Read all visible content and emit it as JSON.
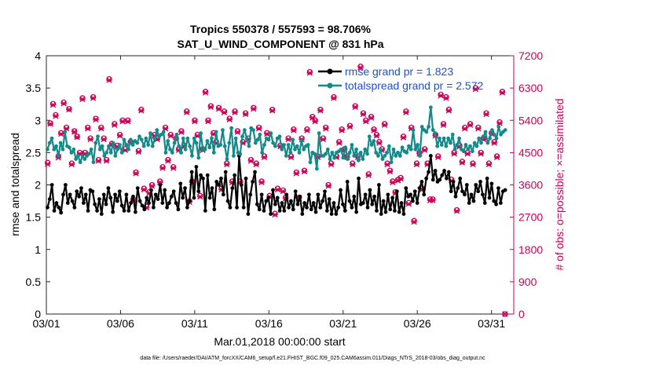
{
  "chart_data": {
    "type": "line",
    "title_line1": "Tropics 550378 / 557593 = 98.706%",
    "title_line2": "SAT_U_WIND_COMPONENT @ 831 hPa",
    "xlabel": "Mar.01,2018 00:00:00 start",
    "ylabel_left": "rmse and totalspread",
    "ylabel_right": "# of obs: o=possible; ×=assimilated",
    "footnote": "data file: /Users/raeder/DAI/ATM_forcXX/CAM6_setup/f.e21.FHIST_BGC.f09_025.CAM6assim.011/Diags_NTrS_2018-03/obs_diag_output.nc",
    "xlim": [
      0,
      31.5
    ],
    "ylim_left": [
      0,
      4
    ],
    "ylim_right": [
      0,
      7200
    ],
    "x_ticks": [
      {
        "value": 0,
        "label": "03/01"
      },
      {
        "value": 5,
        "label": "03/06"
      },
      {
        "value": 10,
        "label": "03/11"
      },
      {
        "value": 15,
        "label": "03/16"
      },
      {
        "value": 20,
        "label": "03/21"
      },
      {
        "value": 25,
        "label": "03/26"
      },
      {
        "value": 30,
        "label": "03/31"
      }
    ],
    "y_ticks_left": [
      "0",
      "0.5",
      "1",
      "1.5",
      "2",
      "2.5",
      "3",
      "3.5",
      "4"
    ],
    "y_ticks_right": [
      "0",
      "900",
      "1800",
      "2700",
      "3600",
      "4500",
      "5400",
      "6300",
      "7200"
    ],
    "legend": [
      {
        "label": "rmse grand pr = 1.823",
        "color": "#000000"
      },
      {
        "label": "totalspread grand pr = 2.572",
        "color": "#138a8a"
      }
    ],
    "colors": {
      "rmse": "#000000",
      "spread": "#138a8a",
      "obs": "#cc0055"
    },
    "series": [
      {
        "name": "rmse",
        "axis": "left",
        "values": [
          1.65,
          1.78,
          2.0,
          1.6,
          1.72,
          1.65,
          1.57,
          1.85,
          2.0,
          1.72,
          1.85,
          1.75,
          1.65,
          1.9,
          1.82,
          1.95,
          1.72,
          1.85,
          1.6,
          1.92,
          1.9,
          1.7,
          1.6,
          1.78,
          1.55,
          1.85,
          1.7,
          1.95,
          1.8,
          1.58,
          1.85,
          1.75,
          1.9,
          1.68,
          1.6,
          1.85,
          1.6,
          1.72,
          1.82,
          1.58,
          1.95,
          1.75,
          1.68,
          1.62,
          1.8,
          1.72,
          1.92,
          1.65,
          1.85,
          1.78,
          2.0,
          1.72,
          1.92,
          1.65,
          1.72,
          1.82,
          1.9,
          1.72,
          1.62,
          2.02,
          1.8,
          1.95,
          1.65,
          1.75,
          2.2,
          1.8,
          2.28,
          1.9,
          2.15,
          2.1,
          1.6,
          2.15,
          1.8,
          1.95,
          1.62,
          2.05,
          2.0,
          2.1,
          1.85,
          2.2,
          1.75,
          1.65,
          1.95,
          2.15,
          1.65,
          2.45,
          2.0,
          1.65,
          2.1,
          1.55,
          1.85,
          2.05,
          2.2,
          1.7,
          1.62,
          1.85,
          1.6,
          1.75,
          1.8,
          1.55,
          1.92,
          1.7,
          1.8,
          1.6,
          1.72,
          1.6,
          1.85,
          1.65,
          1.75,
          1.62,
          1.9,
          1.7,
          1.82,
          1.55,
          1.72,
          1.65,
          1.85,
          1.62,
          1.72,
          1.58,
          1.85,
          1.65,
          1.75,
          1.9,
          1.6,
          1.78,
          1.55,
          1.72,
          1.55,
          1.65,
          1.92,
          1.7,
          1.6,
          2.05,
          1.75,
          1.65,
          1.82,
          1.58,
          2.1,
          1.7,
          1.72,
          1.85,
          1.65,
          1.92,
          1.7,
          1.82,
          1.6,
          2.0,
          1.55,
          1.75,
          1.58,
          1.85,
          1.62,
          1.8,
          1.6,
          1.9,
          1.58,
          1.72,
          1.55,
          1.95,
          1.82,
          1.85,
          1.75,
          1.9,
          1.72,
          1.95,
          2.05,
          1.85,
          2.1,
          2.2,
          2.45,
          2.08,
          2.22,
          2.05,
          2.08,
          2.15,
          2.22,
          2.1,
          2.2,
          1.9,
          2.05,
          1.82,
          1.95,
          2.1,
          1.9,
          1.85,
          2.0,
          1.72,
          1.85,
          1.75,
          2.0,
          1.9,
          2.05,
          1.85,
          1.72,
          2.1,
          1.8,
          2.02,
          1.75,
          1.7,
          1.95,
          1.72,
          1.9,
          1.92
        ]
      },
      {
        "name": "totalspread",
        "axis": "left",
        "values": [
          2.55,
          2.65,
          2.72,
          2.55,
          2.6,
          2.45,
          2.65,
          2.55,
          2.82,
          2.6,
          2.58,
          2.5,
          2.55,
          2.4,
          2.45,
          2.35,
          2.45,
          2.4,
          2.45,
          2.48,
          2.55,
          2.35,
          2.65,
          2.75,
          2.55,
          2.6,
          2.45,
          2.5,
          2.6,
          2.5,
          2.65,
          2.45,
          2.55,
          2.62,
          2.5,
          2.7,
          2.62,
          2.55,
          2.7,
          2.62,
          2.68,
          2.65,
          2.75,
          2.7,
          2.6,
          2.72,
          2.62,
          2.8,
          2.6,
          2.72,
          2.85,
          2.75,
          2.78,
          2.82,
          2.5,
          2.68,
          2.55,
          2.5,
          2.65,
          2.78,
          2.6,
          2.5,
          2.72,
          2.55,
          2.72,
          2.6,
          2.45,
          2.72,
          2.65,
          2.42,
          2.8,
          2.55,
          2.55,
          2.68,
          2.58,
          2.72,
          2.5,
          2.82,
          2.6,
          2.62,
          2.85,
          2.6,
          2.4,
          2.65,
          2.88,
          2.45,
          2.72,
          2.5,
          2.48,
          2.75,
          2.85,
          2.72,
          2.6,
          2.88,
          2.85,
          2.65,
          2.7,
          2.78,
          2.5,
          2.62,
          2.72,
          2.7,
          2.8,
          2.65,
          2.6,
          2.72,
          2.75,
          2.55,
          2.62,
          2.45,
          2.62,
          2.5,
          2.7,
          2.55,
          2.6,
          2.5,
          2.68,
          2.55,
          2.6,
          2.62,
          2.35,
          2.5,
          2.48,
          2.25,
          2.8,
          2.45,
          2.45,
          2.48,
          2.55,
          2.4,
          2.5,
          2.42,
          2.5,
          2.52,
          2.55,
          2.42,
          2.58,
          2.4,
          2.5,
          2.62,
          2.45,
          2.55,
          2.38,
          2.5,
          2.4,
          2.55,
          2.48,
          2.75,
          2.62,
          2.68,
          2.5,
          2.45,
          2.55,
          2.4,
          2.45,
          2.5,
          2.6,
          2.35,
          2.55,
          2.45,
          2.5,
          2.45,
          2.58,
          2.52,
          2.5,
          2.6,
          2.55,
          2.85,
          2.55,
          2.62,
          2.45,
          2.9,
          2.85,
          2.82,
          2.9,
          3.2,
          2.85,
          2.8,
          2.6,
          2.72,
          2.62,
          2.72,
          2.6,
          2.72,
          2.65,
          2.78,
          2.55,
          2.62,
          2.72,
          2.55,
          2.52,
          2.62,
          2.55,
          2.6,
          2.52,
          2.65,
          2.6,
          2.72,
          2.65,
          2.75,
          2.82,
          2.65,
          2.72,
          2.85,
          2.78,
          2.72,
          2.9,
          2.78,
          2.82,
          2.85
        ]
      }
    ],
    "obs_counts": {
      "axis": "right",
      "possible": [
        4220,
        5320,
        5860,
        5550,
        4400,
        5050,
        5900,
        5200,
        5720,
        4200,
        5100,
        4950,
        4500,
        6020,
        4500,
        5200,
        4900,
        6050,
        5450,
        4300,
        5200,
        4900,
        4300,
        6550,
        4750,
        5300,
        4700,
        5000,
        5400,
        4600,
        5400,
        4800,
        3200,
        3950,
        4550,
        5700,
        3500,
        3000,
        3400,
        3600,
        5000,
        4900,
        3700,
        4100,
        5200,
        4300,
        5000,
        4100,
        4900,
        4600,
        5100,
        4700,
        5650,
        3150,
        3700,
        5400,
        5000,
        3300,
        4600,
        6200,
        5400,
        5800,
        5050,
        4800,
        5750,
        3500,
        5650,
        4200,
        5450,
        3700,
        5650,
        5100,
        3700,
        4800,
        5600,
        4900,
        4300,
        5750,
        4200,
        5200,
        3700,
        4400,
        5050,
        3300,
        5700,
        2800,
        3500,
        4700,
        3450,
        3250,
        4900,
        4400,
        5150,
        3950,
        3250,
        4900,
        4000,
        5150,
        6750,
        5500,
        5400,
        4400,
        5700,
        4900,
        5200,
        3600,
        4200,
        6050,
        4400,
        4800,
        5150,
        4600,
        4400,
        5250,
        4200,
        5800,
        4400,
        6900,
        5600,
        5400,
        3900,
        5500,
        5150,
        5000,
        4800,
        4600,
        5300,
        4200,
        4000,
        3700,
        3400,
        3750,
        3800,
        4950,
        5650,
        3100,
        5200,
        2600,
        4200,
        4500,
        3500,
        4600,
        4200,
        3200,
        3200,
        5000,
        4400,
        6120,
        5300,
        6050,
        5700,
        3750,
        4500,
        2900,
        4700,
        4250,
        5200,
        4500,
        5300,
        4200,
        6300,
        5200,
        4500,
        4900,
        5600,
        4200,
        5050,
        4800,
        4400,
        5350,
        6200,
        0
      ],
      "assimilated": [
        4180,
        5300,
        5830,
        5520,
        4360,
        5020,
        5870,
        5170,
        5700,
        4170,
        5080,
        4930,
        4470,
        5990,
        4470,
        5170,
        4870,
        6020,
        5420,
        4270,
        5170,
        4870,
        4270,
        6520,
        4720,
        5270,
        4670,
        4970,
        5370,
        4570,
        5370,
        4770,
        3170,
        3920,
        4520,
        5670,
        3470,
        2970,
        3370,
        3570,
        4970,
        4870,
        3670,
        4070,
        5170,
        4270,
        4970,
        4070,
        4870,
        4570,
        5070,
        4670,
        5620,
        3120,
        3670,
        5370,
        4970,
        3270,
        4570,
        6170,
        5370,
        5770,
        5020,
        4770,
        5720,
        3470,
        5620,
        4170,
        5420,
        3670,
        5620,
        5070,
        3670,
        4770,
        5570,
        4870,
        4270,
        5720,
        4170,
        5170,
        3670,
        4370,
        5020,
        3270,
        5670,
        2770,
        3470,
        4670,
        3420,
        3220,
        4870,
        4370,
        5120,
        3920,
        3220,
        4870,
        3970,
        5120,
        6720,
        5470,
        5370,
        4370,
        5670,
        4870,
        5170,
        3570,
        4170,
        6020,
        4370,
        4770,
        5120,
        4570,
        4370,
        5220,
        4170,
        5770,
        4370,
        6870,
        5570,
        5370,
        3870,
        5470,
        5120,
        4970,
        4770,
        4570,
        5270,
        4170,
        3970,
        3670,
        3370,
        3720,
        3770,
        4920,
        5620,
        3070,
        5170,
        2570,
        4170,
        4470,
        3470,
        4570,
        4170,
        3170,
        3170,
        4970,
        4370,
        6090,
        5270,
        6020,
        5670,
        3720,
        4470,
        2870,
        4670,
        4220,
        5170,
        4470,
        5270,
        4170,
        6270,
        5170,
        4470,
        4870,
        5570,
        4170,
        5020,
        4770,
        4370,
        5320,
        6170,
        0
      ]
    }
  }
}
